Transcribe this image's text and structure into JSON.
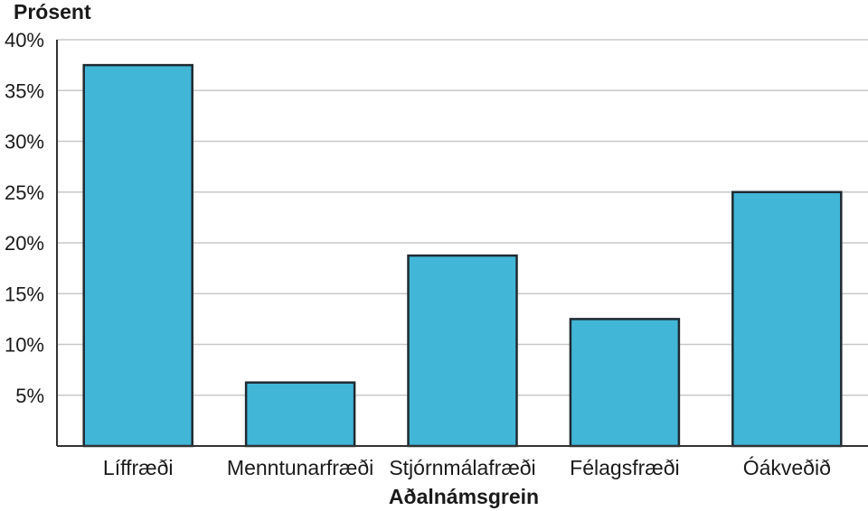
{
  "chart_data": {
    "type": "bar",
    "title": "",
    "ylabel": "Prósent",
    "xlabel": "Aðalnámsgrein",
    "categories": [
      "Líffræði",
      "Menntunarfræði",
      "Stjórnmálafræði",
      "Félagsfræði",
      "Óákveðið"
    ],
    "values": [
      37.5,
      6.25,
      18.75,
      12.5,
      25
    ],
    "ylim": [
      0,
      40
    ],
    "y_ticks": [
      5,
      10,
      15,
      20,
      25,
      30,
      35,
      40
    ],
    "y_tick_labels": [
      "5%",
      "10%",
      "15%",
      "20%",
      "25%",
      "30%",
      "35%",
      "40%"
    ],
    "grid": true,
    "legend": "none",
    "colors": {
      "bar": "#42b6d7",
      "bar_stroke": "#1f2a30",
      "grid": "#c8c8c8",
      "axis": "#333333"
    }
  }
}
